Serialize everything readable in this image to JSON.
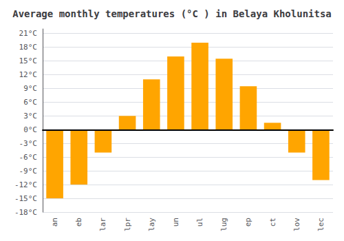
{
  "chart_data": {
    "type": "bar",
    "title": "Average monthly temperatures (°C ) in Belaya Kholunitsa",
    "categories": [
      "an",
      "eb",
      "lar",
      "lpr",
      "lay",
      "un",
      "ul",
      "lug",
      "ep",
      "ct",
      "lov",
      "lec"
    ],
    "values": [
      -15,
      -12,
      -5,
      3,
      11,
      16,
      19,
      15.5,
      9.5,
      1.5,
      -5,
      -11
    ],
    "color": "#FFA500",
    "ylim": [
      -18,
      22
    ],
    "yticks": [
      {
        "value": -18,
        "label": "-18°C"
      },
      {
        "value": -15,
        "label": "-15°C"
      },
      {
        "value": -12,
        "label": "-12°C"
      },
      {
        "value": -9,
        "label": "-9°C"
      },
      {
        "value": -6,
        "label": "-6°C"
      },
      {
        "value": -3,
        "label": "-3°C"
      },
      {
        "value": 0,
        "label": "0°C"
      },
      {
        "value": 3,
        "label": "3°C"
      },
      {
        "value": 6,
        "label": "6°C"
      },
      {
        "value": 9,
        "label": "9°C"
      },
      {
        "value": 12,
        "label": "12°C"
      },
      {
        "value": 15,
        "label": "15°C"
      },
      {
        "value": 18,
        "label": "18°C"
      },
      {
        "value": 21,
        "label": "21°C"
      }
    ],
    "grid": true
  }
}
